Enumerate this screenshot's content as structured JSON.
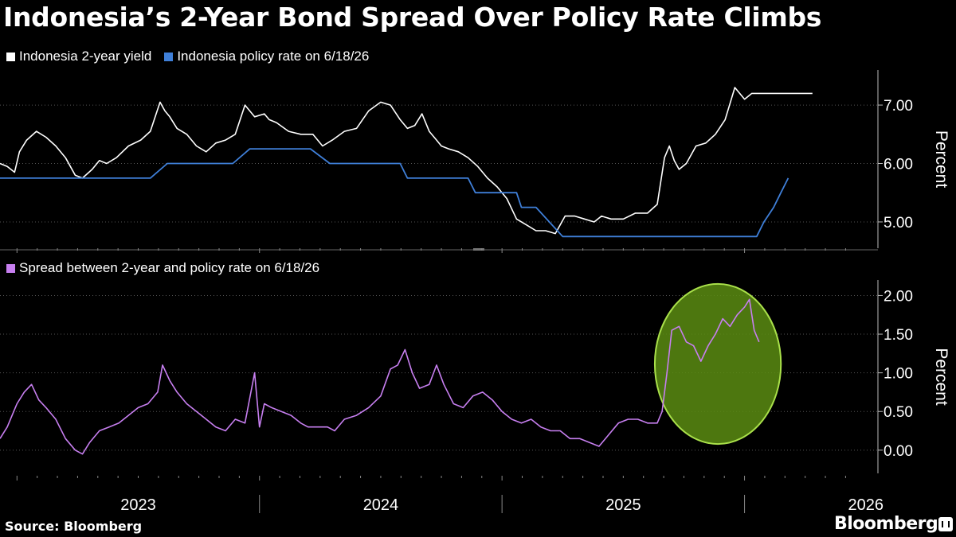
{
  "title": "Indonesia’s 2-Year Bond Spread Over Policy Rate Climbs",
  "source": "Source: Bloomberg",
  "brand": "Bloomberg",
  "colors": {
    "yield": "#ffffff",
    "policy": "#3f7fd8",
    "spread": "#c77ff0",
    "highlight_fill": "#5a8c12",
    "highlight_stroke": "#a9e04a"
  },
  "chart_data": [
    {
      "type": "line",
      "legend": [
        "Indonesia 2-year yield",
        "Indonesia policy rate on 6/18/26"
      ],
      "ylabel": "Percent",
      "ylim": [
        4.55,
        7.6
      ],
      "yticks": [
        "5.00",
        "6.00",
        "7.00"
      ],
      "xlim": [
        2022.93,
        2026.55
      ],
      "series": [
        {
          "name": "Indonesia 2-year yield",
          "x": [
            2022.93,
            2022.96,
            2022.99,
            2023.01,
            2023.04,
            2023.08,
            2023.12,
            2023.16,
            2023.2,
            2023.24,
            2023.27,
            2023.31,
            2023.34,
            2023.37,
            2023.41,
            2023.46,
            2023.51,
            2023.55,
            2023.59,
            2023.61,
            2023.63,
            2023.66,
            2023.7,
            2023.74,
            2023.78,
            2023.82,
            2023.86,
            2023.9,
            2023.94,
            2023.98,
            2024.02,
            2024.04,
            2024.07,
            2024.12,
            2024.17,
            2024.22,
            2024.26,
            2024.3,
            2024.35,
            2024.4,
            2024.45,
            2024.5,
            2024.54,
            2024.58,
            2024.61,
            2024.64,
            2024.67,
            2024.7,
            2024.73,
            2024.75,
            2024.78,
            2024.82,
            2024.86,
            2024.9,
            2024.94,
            2024.98,
            2025.02,
            2025.06,
            2025.1,
            2025.14,
            2025.18,
            2025.22,
            2025.26,
            2025.3,
            2025.34,
            2025.38,
            2025.41,
            2025.45,
            2025.5,
            2025.55,
            2025.6,
            2025.64,
            2025.67,
            2025.69,
            2025.71,
            2025.73,
            2025.76,
            2025.8,
            2025.84,
            2025.88,
            2025.92,
            2025.96,
            2026.0,
            2026.03,
            2026.06,
            2026.09,
            2026.12,
            2026.15,
            2026.18,
            2026.2,
            2026.22,
            2026.25,
            2026.28
          ],
          "values": [
            6.0,
            5.95,
            5.85,
            6.2,
            6.4,
            6.55,
            6.45,
            6.3,
            6.1,
            5.8,
            5.75,
            5.9,
            6.05,
            6.0,
            6.1,
            6.3,
            6.4,
            6.55,
            7.05,
            6.9,
            6.8,
            6.6,
            6.5,
            6.3,
            6.2,
            6.35,
            6.4,
            6.5,
            7.0,
            6.8,
            6.85,
            6.75,
            6.7,
            6.55,
            6.5,
            6.5,
            6.3,
            6.4,
            6.55,
            6.6,
            6.9,
            7.05,
            7.0,
            6.75,
            6.6,
            6.65,
            6.85,
            6.55,
            6.4,
            6.3,
            6.25,
            6.2,
            6.1,
            5.95,
            5.75,
            5.6,
            5.4,
            5.05,
            4.95,
            4.85,
            4.85,
            4.8,
            5.1,
            5.1,
            5.05,
            5.0,
            5.1,
            5.05,
            5.05,
            5.15,
            5.15,
            5.3,
            6.1,
            6.3,
            6.05,
            5.9,
            6.0,
            6.3,
            6.35,
            6.5,
            6.75,
            7.3,
            7.1,
            7.2,
            7.2,
            7.2,
            7.2,
            7.2,
            7.2,
            7.2,
            7.2,
            7.2,
            7.2
          ]
        },
        {
          "name": "Indonesia policy rate on 6/18/26",
          "x": [
            2022.93,
            2023.1,
            2023.29,
            2023.55,
            2023.62,
            2023.89,
            2023.96,
            2024.1,
            2024.21,
            2024.29,
            2024.35,
            2024.58,
            2024.61,
            2024.86,
            2024.89,
            2024.96,
            2024.98,
            2025.06,
            2025.08,
            2025.14,
            2025.25,
            2025.31,
            2025.35,
            2025.8,
            2025.84,
            2025.95,
            2026.0,
            2026.05,
            2026.08,
            2026.12,
            2026.15,
            2026.18
          ],
          "values": [
            5.75,
            5.75,
            5.75,
            5.75,
            6.0,
            6.0,
            6.25,
            6.25,
            6.25,
            6.0,
            6.0,
            6.0,
            5.75,
            5.75,
            5.5,
            5.5,
            5.5,
            5.5,
            5.25,
            5.25,
            4.75,
            4.75,
            4.75,
            4.75,
            4.75,
            4.75,
            4.75,
            4.75,
            5.0,
            5.25,
            5.5,
            5.75
          ]
        }
      ]
    },
    {
      "type": "line",
      "legend": [
        "Spread between 2-year and policy rate on 6/18/26"
      ],
      "ylabel": "Percent",
      "ylim": [
        -0.3,
        2.2
      ],
      "yticks": [
        "0.00",
        "0.50",
        "1.00",
        "1.50",
        "2.00"
      ],
      "xlim": [
        2022.93,
        2026.55
      ],
      "xticks": [
        "2023",
        "2024",
        "2025",
        "2026"
      ],
      "series": [
        {
          "name": "Spread between 2-year and policy rate on 6/18/26",
          "x": [
            2022.93,
            2022.96,
            2022.98,
            2023.0,
            2023.03,
            2023.06,
            2023.09,
            2023.12,
            2023.16,
            2023.2,
            2023.24,
            2023.27,
            2023.3,
            2023.34,
            2023.38,
            2023.42,
            2023.46,
            2023.5,
            2023.54,
            2023.58,
            2023.6,
            2023.63,
            2023.66,
            2023.7,
            2023.74,
            2023.78,
            2023.82,
            2023.86,
            2023.9,
            2023.94,
            2023.98,
            2024.0,
            2024.02,
            2024.05,
            2024.09,
            2024.13,
            2024.17,
            2024.2,
            2024.24,
            2024.28,
            2024.31,
            2024.35,
            2024.4,
            2024.45,
            2024.5,
            2024.54,
            2024.57,
            2024.6,
            2024.63,
            2024.66,
            2024.7,
            2024.73,
            2024.76,
            2024.8,
            2024.84,
            2024.88,
            2024.92,
            2024.96,
            2025.0,
            2025.04,
            2025.08,
            2025.12,
            2025.16,
            2025.2,
            2025.24,
            2025.28,
            2025.32,
            2025.36,
            2025.4,
            2025.44,
            2025.48,
            2025.52,
            2025.56,
            2025.6,
            2025.64,
            2025.66,
            2025.68,
            2025.7,
            2025.73,
            2025.76,
            2025.79,
            2025.82,
            2025.85,
            2025.88,
            2025.91,
            2025.94,
            2025.97,
            2026.0,
            2026.02,
            2026.04,
            2026.06
          ],
          "values": [
            0.15,
            0.3,
            0.45,
            0.6,
            0.75,
            0.85,
            0.65,
            0.55,
            0.4,
            0.15,
            0.0,
            -0.05,
            0.1,
            0.25,
            0.3,
            0.35,
            0.45,
            0.55,
            0.6,
            0.75,
            1.1,
            0.9,
            0.75,
            0.6,
            0.5,
            0.4,
            0.3,
            0.25,
            0.4,
            0.35,
            1.0,
            0.3,
            0.6,
            0.55,
            0.5,
            0.45,
            0.35,
            0.3,
            0.3,
            0.3,
            0.25,
            0.4,
            0.45,
            0.55,
            0.7,
            1.05,
            1.1,
            1.3,
            1.0,
            0.8,
            0.85,
            1.1,
            0.85,
            0.6,
            0.55,
            0.7,
            0.75,
            0.65,
            0.5,
            0.4,
            0.35,
            0.4,
            0.3,
            0.25,
            0.25,
            0.15,
            0.15,
            0.1,
            0.05,
            0.2,
            0.35,
            0.4,
            0.4,
            0.35,
            0.35,
            0.5,
            1.0,
            1.55,
            1.6,
            1.4,
            1.35,
            1.15,
            1.35,
            1.5,
            1.7,
            1.6,
            1.75,
            1.85,
            1.95,
            1.55,
            1.4
          ]
        }
      ],
      "annotation": {
        "type": "ellipse",
        "x_range": [
          2025.63,
          2026.15
        ],
        "y_range": [
          0.08,
          2.15
        ]
      }
    }
  ]
}
